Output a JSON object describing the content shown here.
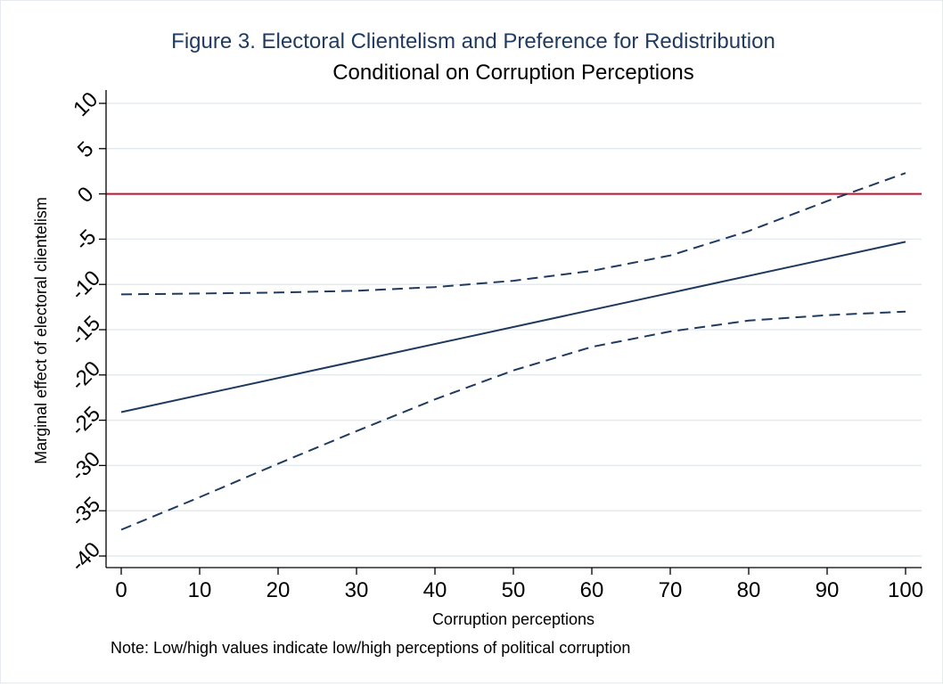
{
  "chart_data": {
    "type": "line",
    "title": "Figure 3. Electoral Clientelism and Preference for Redistribution",
    "subtitle": "Conditional on Corruption Perceptions",
    "xlabel": "Corruption perceptions",
    "ylabel": "Marginal effect of electoral clientelism",
    "note": "Note: Low/high values indicate low/high perceptions of political corruption",
    "xlim": [
      0,
      100
    ],
    "ylim": [
      -40,
      10
    ],
    "x_ticks": [
      "0",
      "10",
      "20",
      "30",
      "40",
      "50",
      "60",
      "70",
      "80",
      "90",
      "100"
    ],
    "y_ticks": [
      "10",
      "5",
      "0",
      "-5",
      "-10",
      "-15",
      "-20",
      "-25",
      "-30",
      "-35",
      "-40"
    ],
    "grid": true,
    "reference_line": {
      "y": 0,
      "color": "#c8102e"
    },
    "series": [
      {
        "style": "solid",
        "color": "#1f3a5f",
        "x": [
          0,
          100
        ],
        "y": [
          -24.1,
          -5.3
        ]
      },
      {
        "style": "dashed",
        "color": "#1f3a5f",
        "x": [
          0,
          10,
          20,
          30,
          40,
          50,
          60,
          70,
          80,
          90,
          100
        ],
        "y": [
          -11.1,
          -11.0,
          -10.9,
          -10.7,
          -10.3,
          -9.6,
          -8.5,
          -6.8,
          -4.1,
          -0.8,
          2.3
        ]
      },
      {
        "style": "dashed",
        "color": "#1f3a5f",
        "x": [
          0,
          10,
          20,
          30,
          40,
          50,
          60,
          70,
          80,
          90,
          100
        ],
        "y": [
          -37.1,
          -33.5,
          -29.8,
          -26.2,
          -22.7,
          -19.5,
          -16.9,
          -15.2,
          -14.0,
          -13.4,
          -13.0
        ]
      }
    ]
  }
}
